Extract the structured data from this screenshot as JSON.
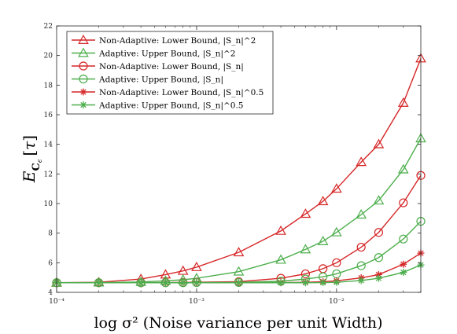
{
  "chart_data": {
    "type": "line",
    "title": "",
    "xlabel": "log σ² (Noise variance per unit Width)",
    "ylabel": "E_{C_ε}[τ]",
    "xscale": "log",
    "xlim": [
      0.0001,
      0.04
    ],
    "ylim": [
      4,
      22
    ],
    "yticks": [
      4,
      6,
      8,
      10,
      12,
      14,
      16,
      18,
      20,
      22
    ],
    "xticks": [
      {
        "value": 0.0001,
        "label": "10⁻⁴"
      },
      {
        "value": 0.001,
        "label": "10⁻³"
      },
      {
        "value": 0.01,
        "label": "10⁻²"
      }
    ],
    "grid": false,
    "legend_position": "top-left",
    "x": [
      0.0001,
      0.0002,
      0.0004,
      0.0006,
      0.0008,
      0.001,
      0.002,
      0.004,
      0.006,
      0.008,
      0.01,
      0.015,
      0.02,
      0.03,
      0.04
    ],
    "series": [
      {
        "name": "Non-Adaptive: Lower Bound, |S_n|^2",
        "color": "#d62728",
        "marker": "triangle",
        "values": [
          4.65,
          4.68,
          4.9,
          5.2,
          5.45,
          5.7,
          6.7,
          8.15,
          9.3,
          10.15,
          11.0,
          12.8,
          14.0,
          16.8,
          19.8
        ]
      },
      {
        "name": "Adaptive: Upper Bound, |S_n|^2",
        "color": "#4cae4c",
        "marker": "triangle",
        "values": [
          4.65,
          4.66,
          4.7,
          4.78,
          4.85,
          4.95,
          5.4,
          6.2,
          6.9,
          7.45,
          8.05,
          9.25,
          10.2,
          12.3,
          14.4
        ]
      },
      {
        "name": "Non-Adaptive: Lower Bound, |S_n|",
        "color": "#d62728",
        "marker": "circle",
        "values": [
          4.65,
          4.65,
          4.65,
          4.66,
          4.67,
          4.68,
          4.72,
          4.95,
          5.25,
          5.6,
          6.0,
          7.05,
          8.05,
          10.05,
          11.9
        ]
      },
      {
        "name": "Adaptive: Upper Bound, |S_n|",
        "color": "#4cae4c",
        "marker": "circle",
        "values": [
          4.65,
          4.65,
          4.65,
          4.65,
          4.65,
          4.66,
          4.67,
          4.75,
          4.9,
          5.05,
          5.25,
          5.8,
          6.35,
          7.6,
          8.8
        ]
      },
      {
        "name": "Non-Adaptive: Lower Bound, |S_n|^0.5",
        "color": "#d62728",
        "marker": "star",
        "values": [
          4.65,
          4.65,
          4.65,
          4.65,
          4.65,
          4.65,
          4.65,
          4.66,
          4.68,
          4.72,
          4.78,
          4.98,
          5.2,
          5.9,
          6.65
        ]
      },
      {
        "name": "Adaptive: Upper Bound, |S_n|^0.5",
        "color": "#4cae4c",
        "marker": "star",
        "values": [
          4.65,
          4.65,
          4.65,
          4.65,
          4.65,
          4.65,
          4.65,
          4.65,
          4.65,
          4.66,
          4.68,
          4.8,
          4.95,
          5.35,
          5.85
        ]
      }
    ]
  }
}
